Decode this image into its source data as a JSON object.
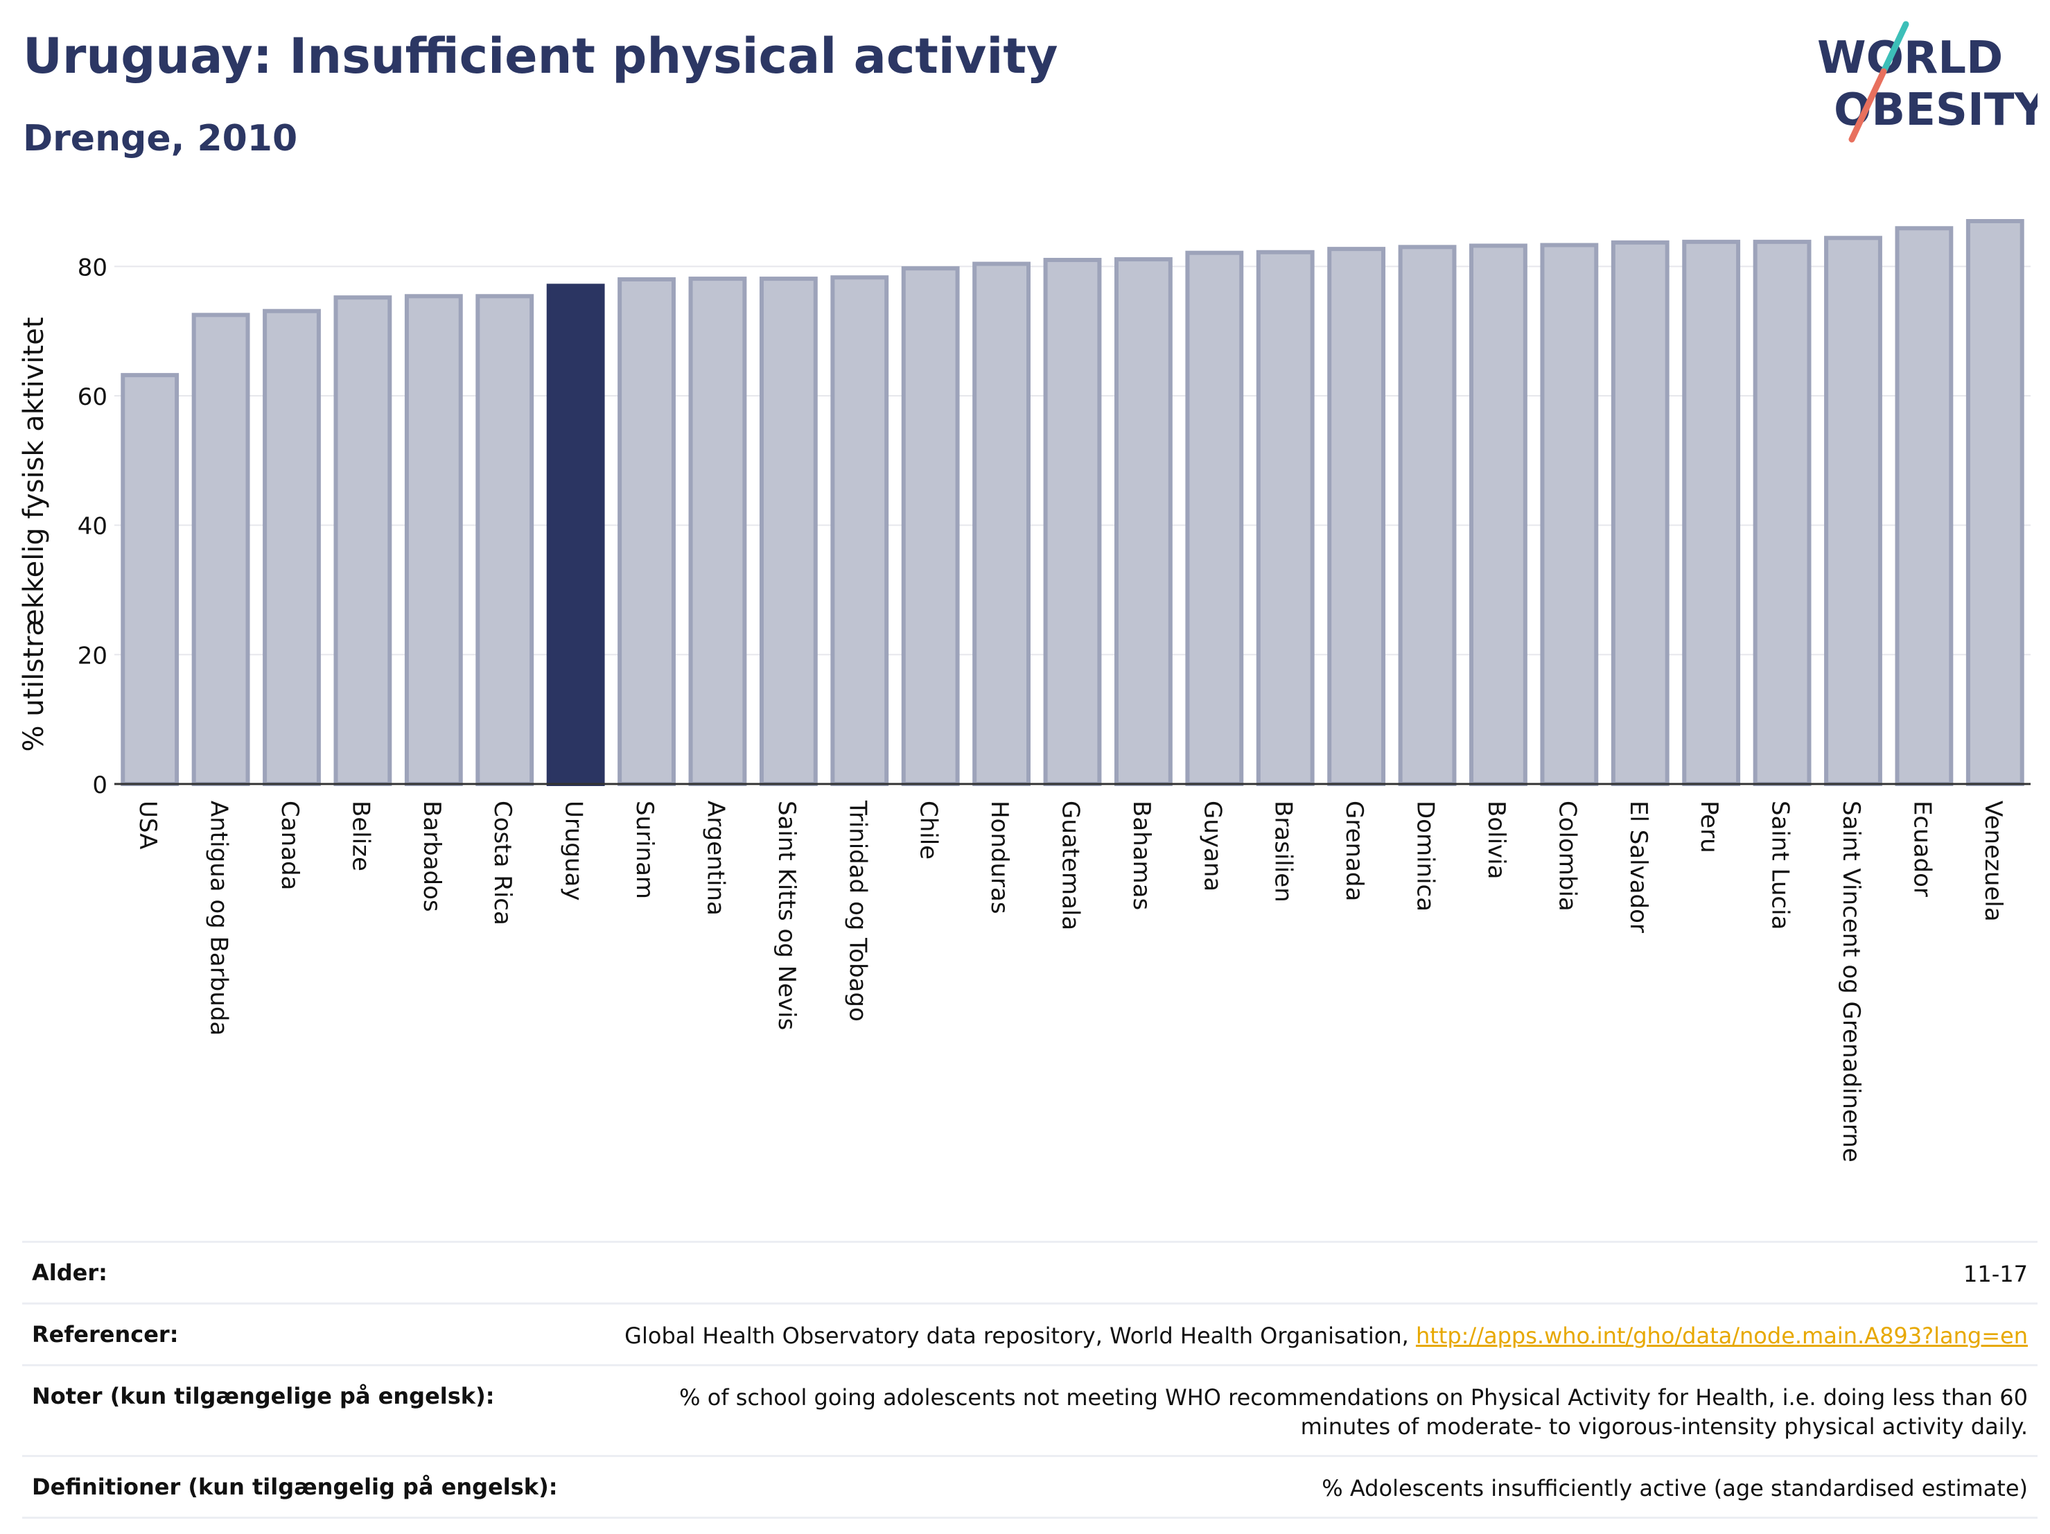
{
  "header": {
    "title": "Uruguay: Insufficient physical activity",
    "subtitle": "Drenge, 2010"
  },
  "logo": {
    "line1": "WORLD",
    "line2": "OBESITY"
  },
  "colors": {
    "highlight": "#2b3562",
    "bar_fill": "#bfc3d1",
    "bar_stroke": "#9da3ba",
    "title": "#2c3764",
    "link": "#e7a800",
    "logo_teal": "#3dbfb8",
    "logo_coral": "#e8705e"
  },
  "chart_data": {
    "type": "bar",
    "ylabel": "% utilstrækkelig fysisk aktivitet",
    "xlabel": "",
    "ylim": [
      0,
      90
    ],
    "yticks": [
      0,
      20,
      40,
      60,
      80
    ],
    "grid": true,
    "highlight": "Uruguay",
    "categories": [
      "USA",
      "Antigua og Barbuda",
      "Canada",
      "Belize",
      "Barbados",
      "Costa Rica",
      "Uruguay",
      "Surinam",
      "Argentina",
      "Saint Kitts og Nevis",
      "Trinidad og Tobago",
      "Chile",
      "Honduras",
      "Guatemala",
      "Bahamas",
      "Guyana",
      "Brasilien",
      "Grenada",
      "Dominica",
      "Bolivia",
      "Colombia",
      "El Salvador",
      "Peru",
      "Saint Lucia",
      "Saint Vincent og Grenadinerne",
      "Ecuador",
      "Venezuela"
    ],
    "values": [
      63.2,
      72.5,
      73.1,
      75.2,
      75.4,
      75.4,
      77.0,
      78.0,
      78.1,
      78.1,
      78.3,
      79.7,
      80.4,
      81.0,
      81.1,
      82.1,
      82.2,
      82.7,
      83.0,
      83.2,
      83.3,
      83.7,
      83.8,
      83.8,
      84.4,
      85.9,
      87.0
    ]
  },
  "meta": {
    "age_label": "Alder:",
    "age_value": "11-17",
    "ref_label": "Referencer:",
    "ref_text": "Global Health Observatory data repository, World Health Organisation, ",
    "ref_link": "http://apps.who.int/gho/data/node.main.A893?lang=en",
    "notes_label": "Noter (kun tilgængelige på engelsk):",
    "notes_value": "% of school going adolescents not meeting WHO recommendations on Physical Activity for Health, i.e. doing less than 60 minutes of moderate- to vigorous-intensity physical activity daily.",
    "def_label": "Definitioner (kun tilgængelig på engelsk):",
    "def_value": "% Adolescents insufficiently active (age standardised estimate)"
  }
}
